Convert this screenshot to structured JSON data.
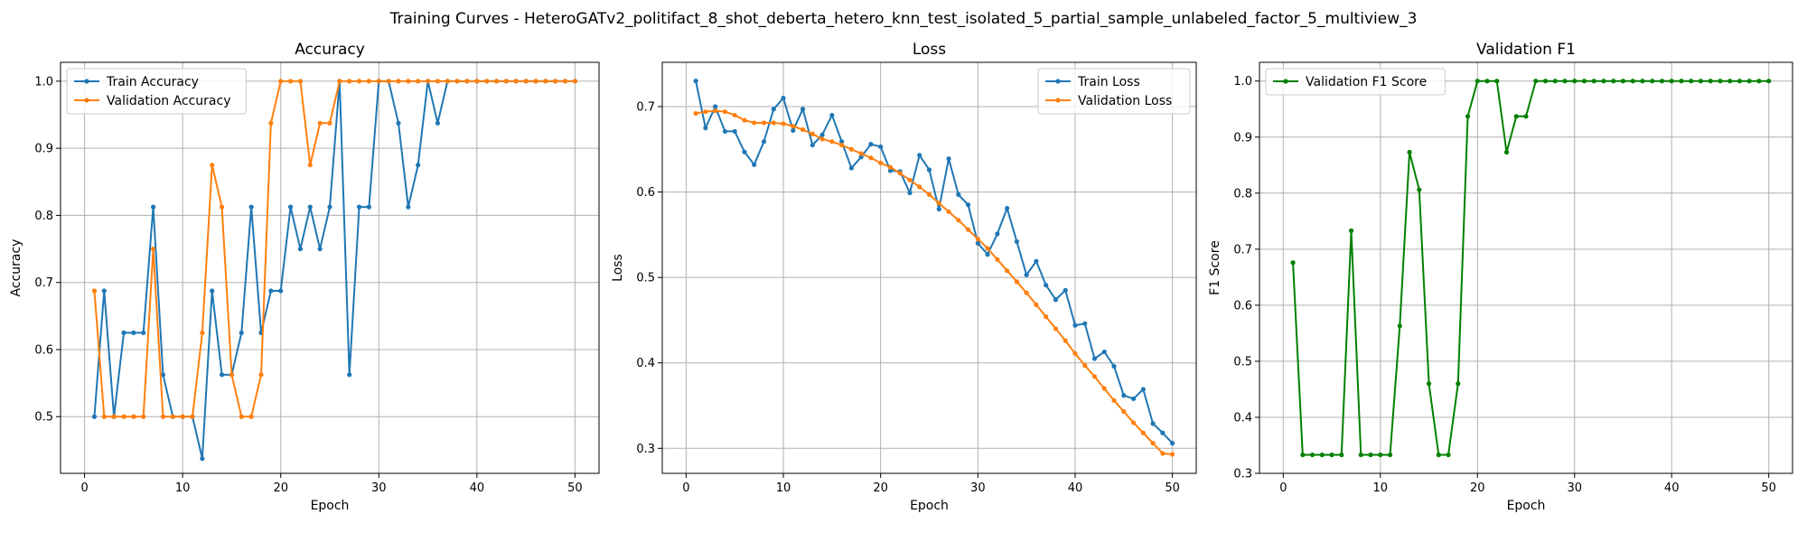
{
  "figure": {
    "suptitle": "Training Curves - HeteroGATv2_politifact_8_shot_deberta_hetero_knn_test_isolated_5_partial_sample_unlabeled_factor_5_multiview_3"
  },
  "chart_data": [
    {
      "type": "line",
      "title": "Accuracy",
      "xlabel": "Epoch",
      "ylabel": "Accuracy",
      "xlim": [
        -2.45,
        52.45
      ],
      "ylim": [
        0.4155,
        1.0281
      ],
      "xticks": [
        0,
        10,
        20,
        30,
        40,
        50
      ],
      "yticks": [
        0.5,
        0.6,
        0.7,
        0.8,
        0.9,
        1.0
      ],
      "ytick_labels": [
        "0.5",
        "0.6",
        "0.7",
        "0.8",
        "0.9",
        "1.0"
      ],
      "grid": true,
      "legend_loc": "upper-left",
      "x": [
        1,
        2,
        3,
        4,
        5,
        6,
        7,
        8,
        9,
        10,
        11,
        12,
        13,
        14,
        15,
        16,
        17,
        18,
        19,
        20,
        21,
        22,
        23,
        24,
        25,
        26,
        27,
        28,
        29,
        30,
        31,
        32,
        33,
        34,
        35,
        36,
        37,
        38,
        39,
        40,
        41,
        42,
        43,
        44,
        45,
        46,
        47,
        48,
        49,
        50
      ],
      "series": [
        {
          "name": "Train Accuracy",
          "color": "#1f77b4",
          "values": [
            0.5,
            0.6875,
            0.5,
            0.625,
            0.625,
            0.625,
            0.8125,
            0.5625,
            0.5,
            0.5,
            0.5,
            0.4375,
            0.6875,
            0.5625,
            0.5625,
            0.625,
            0.8125,
            0.625,
            0.6875,
            0.6875,
            0.8125,
            0.75,
            0.8125,
            0.75,
            0.8125,
            1.0,
            0.5625,
            0.8125,
            0.8125,
            1.0,
            1.0,
            0.9375,
            0.8125,
            0.875,
            1.0,
            0.9375,
            1.0,
            1.0,
            1.0,
            1.0,
            1.0,
            1.0,
            1.0,
            1.0,
            1.0,
            1.0,
            1.0,
            1.0,
            1.0,
            1.0
          ]
        },
        {
          "name": "Validation Accuracy",
          "color": "#ff7f0e",
          "values": [
            0.6875,
            0.5,
            0.5,
            0.5,
            0.5,
            0.5,
            0.75,
            0.5,
            0.5,
            0.5,
            0.5,
            0.625,
            0.875,
            0.8125,
            0.5625,
            0.5,
            0.5,
            0.5625,
            0.9375,
            1.0,
            1.0,
            1.0,
            0.875,
            0.9375,
            0.9375,
            1.0,
            1.0,
            1.0,
            1.0,
            1.0,
            1.0,
            1.0,
            1.0,
            1.0,
            1.0,
            1.0,
            1.0,
            1.0,
            1.0,
            1.0,
            1.0,
            1.0,
            1.0,
            1.0,
            1.0,
            1.0,
            1.0,
            1.0,
            1.0,
            1.0
          ]
        }
      ]
    },
    {
      "type": "line",
      "title": "Loss",
      "xlabel": "Epoch",
      "ylabel": "Loss",
      "xlim": [
        -2.45,
        52.45
      ],
      "ylim": [
        0.2707,
        0.7518
      ],
      "xticks": [
        0,
        10,
        20,
        30,
        40,
        50
      ],
      "yticks": [
        0.3,
        0.4,
        0.5,
        0.6,
        0.7
      ],
      "ytick_labels": [
        "0.3",
        "0.4",
        "0.5",
        "0.6",
        "0.7"
      ],
      "grid": true,
      "legend_loc": "upper-right",
      "x": [
        1,
        2,
        3,
        4,
        5,
        6,
        7,
        8,
        9,
        10,
        11,
        12,
        13,
        14,
        15,
        16,
        17,
        18,
        19,
        20,
        21,
        22,
        23,
        24,
        25,
        26,
        27,
        28,
        29,
        30,
        31,
        32,
        33,
        34,
        35,
        36,
        37,
        38,
        39,
        40,
        41,
        42,
        43,
        44,
        45,
        46,
        47,
        48,
        49,
        50
      ],
      "series": [
        {
          "name": "Train Loss",
          "color": "#1f77b4",
          "values": [
            0.73,
            0.675,
            0.7,
            0.671,
            0.671,
            0.647,
            0.632,
            0.659,
            0.697,
            0.71,
            0.672,
            0.697,
            0.655,
            0.667,
            0.69,
            0.659,
            0.628,
            0.641,
            0.656,
            0.653,
            0.625,
            0.624,
            0.599,
            0.643,
            0.626,
            0.58,
            0.639,
            0.597,
            0.585,
            0.54,
            0.527,
            0.551,
            0.581,
            0.542,
            0.503,
            0.519,
            0.491,
            0.474,
            0.485,
            0.444,
            0.446,
            0.405,
            0.413,
            0.396,
            0.362,
            0.358,
            0.369,
            0.329,
            0.318,
            0.306
          ]
        },
        {
          "name": "Validation Loss",
          "color": "#ff7f0e",
          "values": [
            0.692,
            0.694,
            0.695,
            0.694,
            0.69,
            0.684,
            0.681,
            0.681,
            0.681,
            0.68,
            0.677,
            0.673,
            0.668,
            0.662,
            0.659,
            0.655,
            0.65,
            0.645,
            0.64,
            0.634,
            0.629,
            0.622,
            0.614,
            0.606,
            0.597,
            0.587,
            0.577,
            0.567,
            0.556,
            0.545,
            0.534,
            0.521,
            0.508,
            0.495,
            0.482,
            0.468,
            0.454,
            0.44,
            0.426,
            0.411,
            0.397,
            0.384,
            0.37,
            0.356,
            0.343,
            0.33,
            0.318,
            0.306,
            0.294,
            0.293
          ]
        }
      ]
    },
    {
      "type": "line",
      "title": "Validation F1",
      "xlabel": "Epoch",
      "ylabel": "F1 Score",
      "xlim": [
        -2.45,
        52.45
      ],
      "ylim": [
        0.3,
        1.0334
      ],
      "xticks": [
        0,
        10,
        20,
        30,
        40,
        50
      ],
      "yticks": [
        0.3,
        0.4,
        0.5,
        0.6,
        0.7,
        0.8,
        0.9,
        1.0
      ],
      "ytick_labels": [
        "0.3",
        "0.4",
        "0.5",
        "0.6",
        "0.7",
        "0.8",
        "0.9",
        "1.0"
      ],
      "grid": true,
      "legend_loc": "upper-left",
      "x": [
        1,
        2,
        3,
        4,
        5,
        6,
        7,
        8,
        9,
        10,
        11,
        12,
        13,
        14,
        15,
        16,
        17,
        18,
        19,
        20,
        21,
        22,
        23,
        24,
        25,
        26,
        27,
        28,
        29,
        30,
        31,
        32,
        33,
        34,
        35,
        36,
        37,
        38,
        39,
        40,
        41,
        42,
        43,
        44,
        45,
        46,
        47,
        48,
        49,
        50
      ],
      "series": [
        {
          "name": "Validation F1 Score",
          "color": "#008000",
          "values": [
            0.676,
            0.333,
            0.333,
            0.333,
            0.333,
            0.333,
            0.733,
            0.333,
            0.333,
            0.333,
            0.333,
            0.563,
            0.873,
            0.806,
            0.46,
            0.333,
            0.333,
            0.46,
            0.937,
            1.0,
            1.0,
            1.0,
            0.873,
            0.937,
            0.937,
            1.0,
            1.0,
            1.0,
            1.0,
            1.0,
            1.0,
            1.0,
            1.0,
            1.0,
            1.0,
            1.0,
            1.0,
            1.0,
            1.0,
            1.0,
            1.0,
            1.0,
            1.0,
            1.0,
            1.0,
            1.0,
            1.0,
            1.0,
            1.0,
            1.0
          ]
        }
      ]
    }
  ]
}
